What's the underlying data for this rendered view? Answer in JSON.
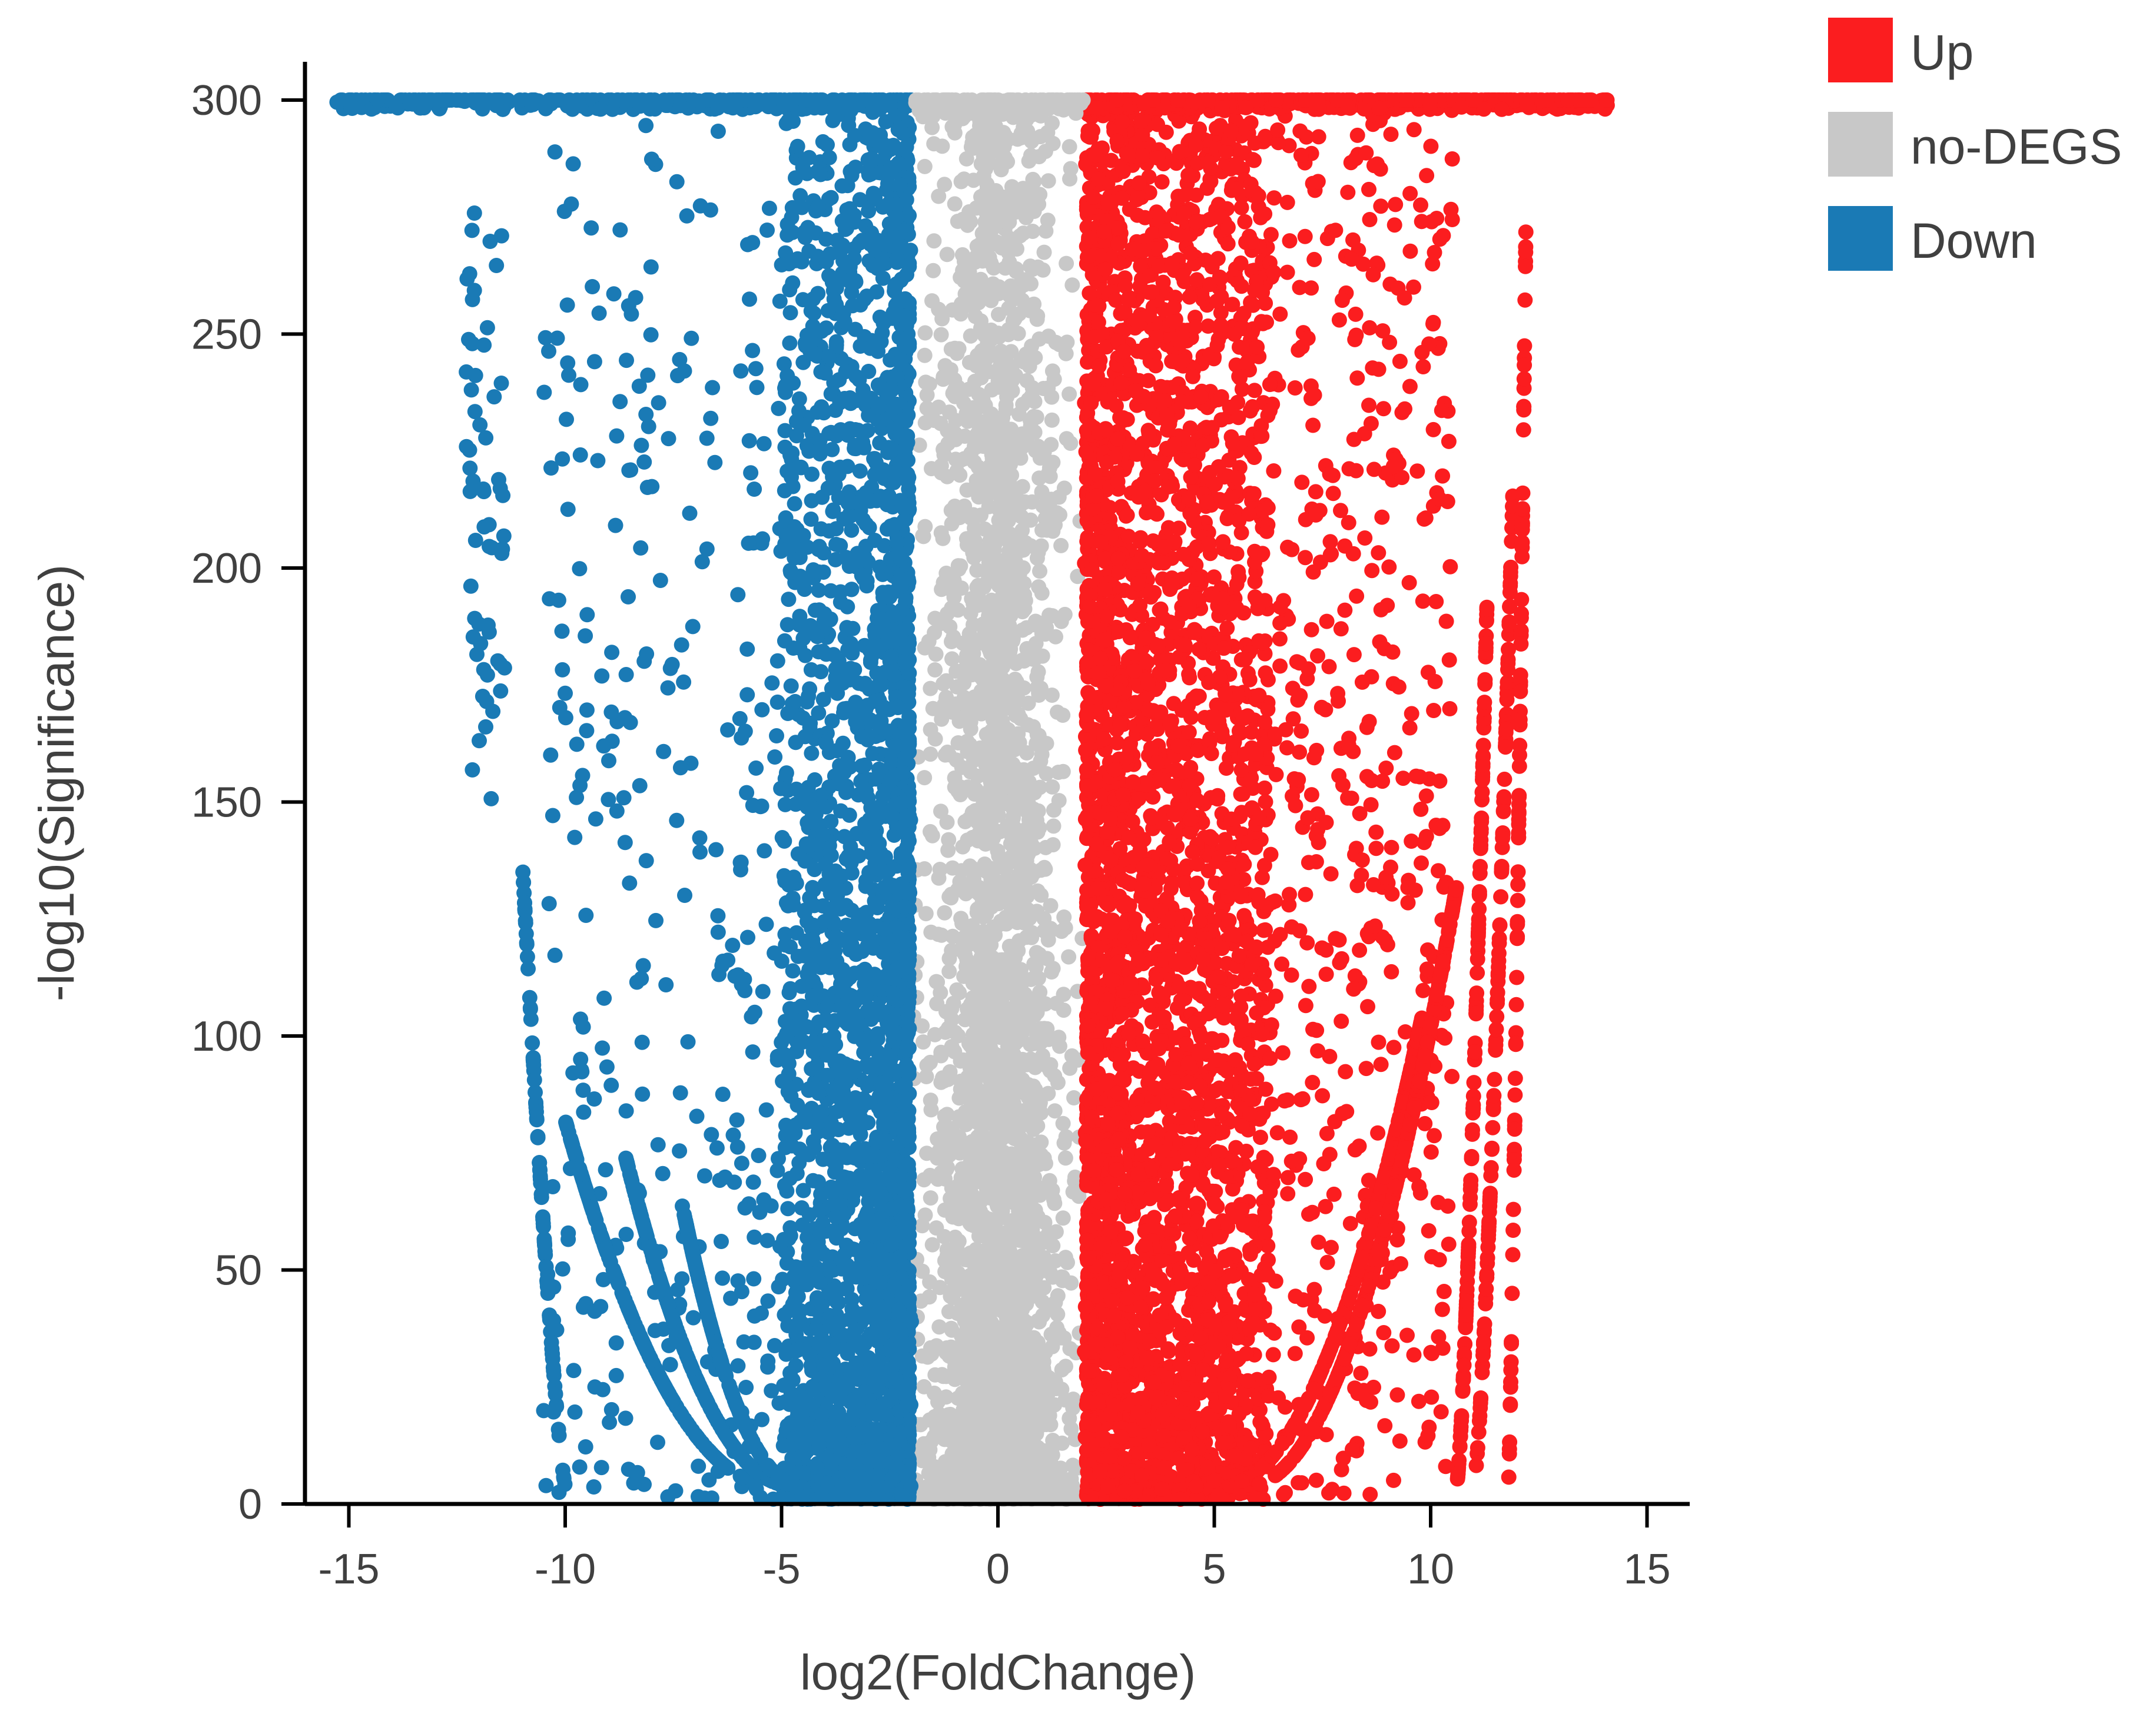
{
  "chart_data": {
    "type": "scatter",
    "title": "",
    "xlabel": "log2(FoldChange)",
    "ylabel": "-log10(Significance)",
    "xlim": [
      -16,
      16
    ],
    "ylim": [
      0,
      306
    ],
    "xticks": [
      -15,
      -10,
      -5,
      0,
      5,
      10,
      15
    ],
    "yticks": [
      0,
      50,
      100,
      150,
      200,
      250,
      300
    ],
    "grid": false,
    "legend_position": "top-right",
    "series": [
      {
        "name": "Up",
        "color": "#fb1d1f"
      },
      {
        "name": "no-DEGS",
        "color": "#c8c8c8"
      },
      {
        "name": "Down",
        "color": "#1a7ab5"
      }
    ],
    "fold_change_threshold": 2,
    "significance_cap": 300
  }
}
